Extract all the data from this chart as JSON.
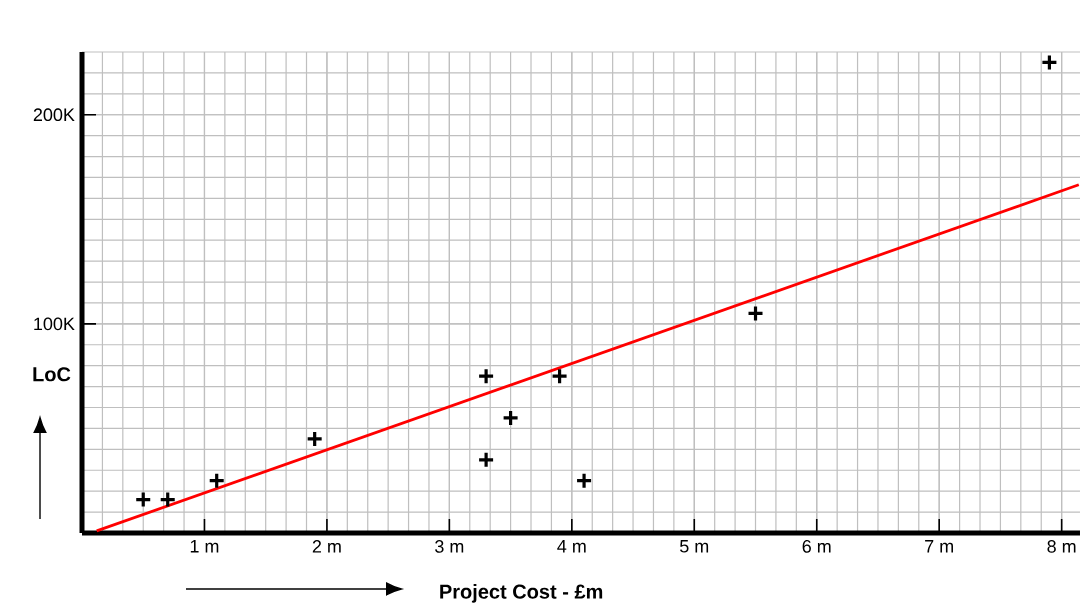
{
  "chart_data": {
    "type": "scatter",
    "xlabel": "Project Cost - £m",
    "ylabel": "LoC",
    "xlim": [
      0,
      8.15
    ],
    "ylim": [
      0,
      230
    ],
    "xticks": [
      {
        "value": 1,
        "label": "1 m"
      },
      {
        "value": 2,
        "label": "2 m"
      },
      {
        "value": 3,
        "label": "3 m"
      },
      {
        "value": 4,
        "label": "4 m"
      },
      {
        "value": 5,
        "label": "5 m"
      },
      {
        "value": 6,
        "label": "6 m"
      },
      {
        "value": 7,
        "label": "7 m"
      },
      {
        "value": 8,
        "label": "8 m"
      }
    ],
    "yticks": [
      {
        "value": 100,
        "label": "100K"
      },
      {
        "value": 200,
        "label": "200K"
      }
    ],
    "grid": true,
    "series": [
      {
        "marker": "cross",
        "color": "#000000",
        "x": [
          0.5,
          0.7,
          1.1,
          1.9,
          3.3,
          3.3,
          3.5,
          3.9,
          4.1,
          5.5,
          7.9
        ],
        "values": [
          16,
          16,
          25,
          45,
          75,
          35,
          55,
          75,
          25,
          105,
          225
        ]
      },
      {
        "type": "line",
        "color": "#ff0000",
        "x": [
          0.12,
          8.14
        ],
        "values": [
          1,
          166.5
        ]
      }
    ]
  }
}
